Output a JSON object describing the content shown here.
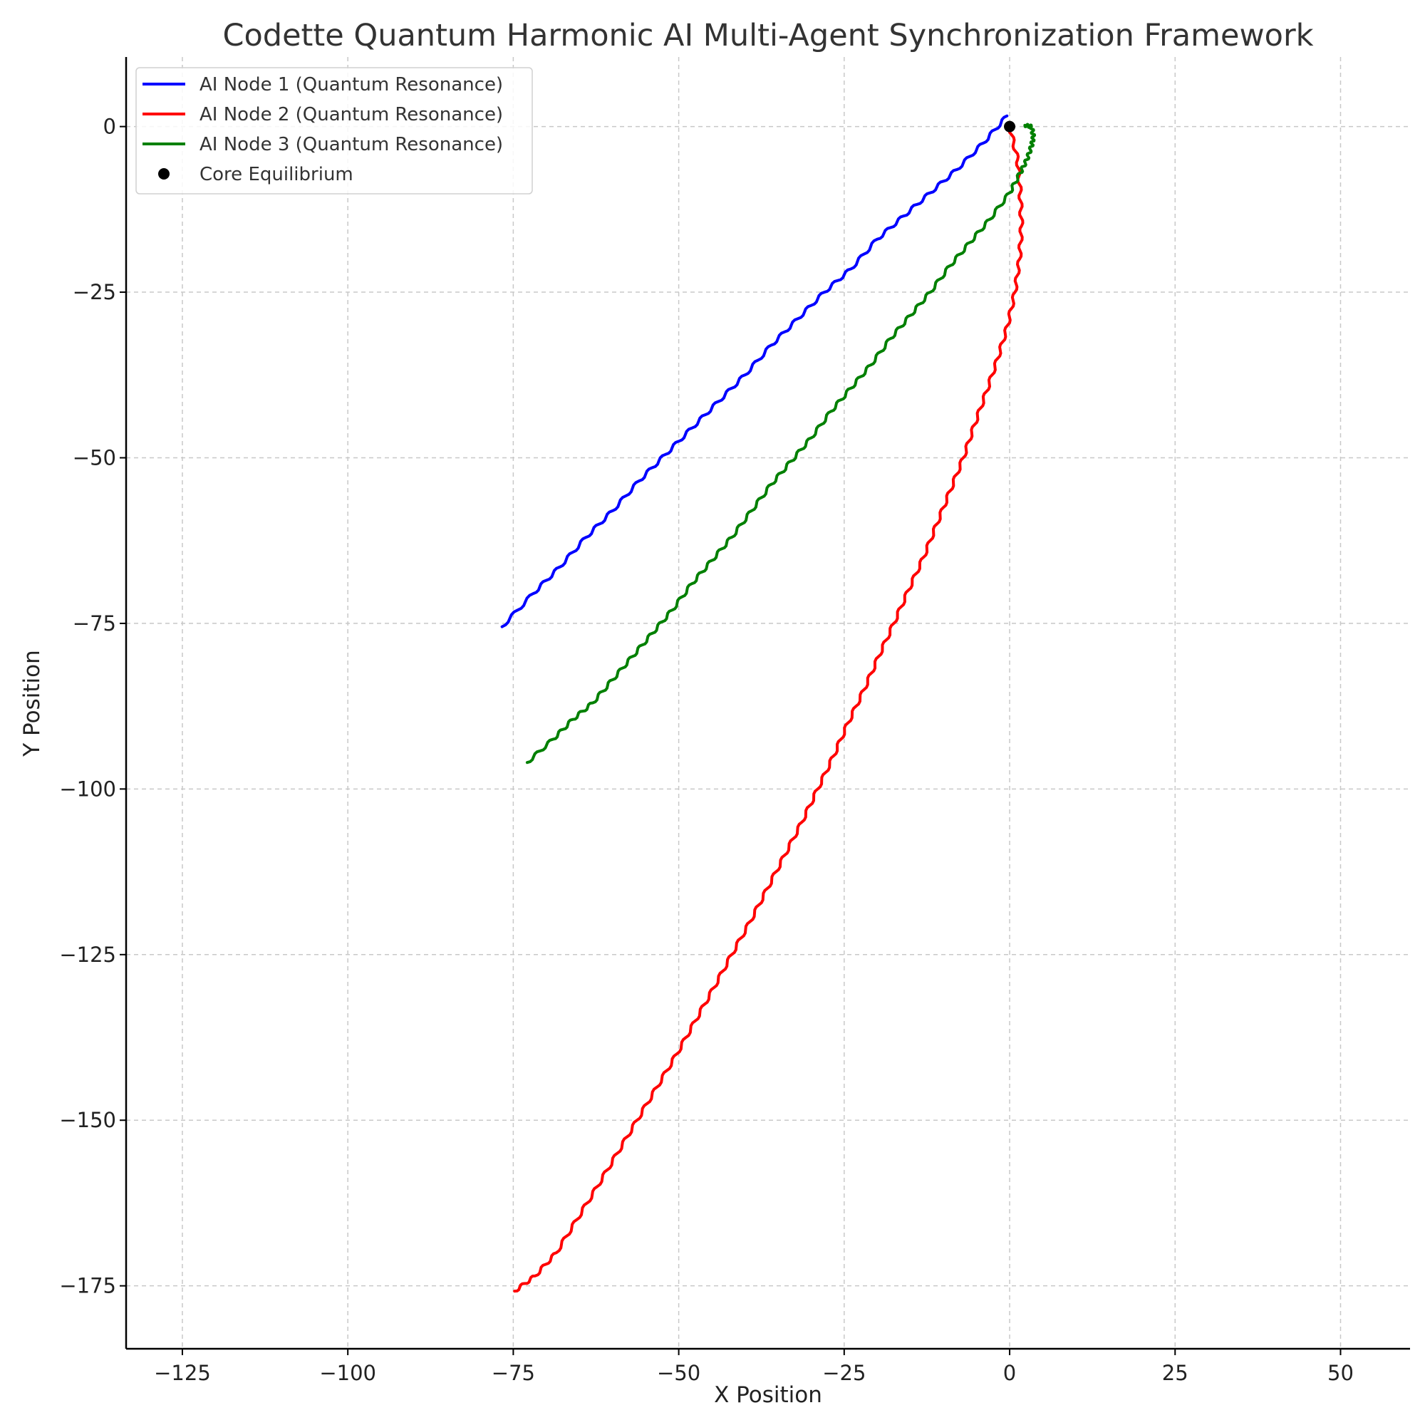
{
  "chart_data": {
    "type": "line",
    "title": "Codette Quantum Harmonic AI Multi-Agent Synchronization Framework",
    "xlabel": "X Position",
    "ylabel": "Y Position",
    "xlim": [
      -133.5,
      60.5
    ],
    "ylim": [
      -184.5,
      10.5
    ],
    "xticks": [
      -125,
      -100,
      -75,
      -50,
      -25,
      0,
      25,
      50
    ],
    "yticks": [
      0,
      -25,
      -50,
      -75,
      -100,
      -125,
      -150,
      -175
    ],
    "xtick_labels": [
      "−125",
      "−100",
      "−75",
      "−50",
      "−25",
      "0",
      "25",
      "50"
    ],
    "ytick_labels": [
      "0",
      "−25",
      "−50",
      "−75",
      "−100",
      "−125",
      "−150",
      "−175"
    ],
    "grid": true,
    "legend_position": "top-left",
    "series": [
      {
        "name": "AI Node 1 (Quantum Resonance)",
        "color": "#0000ff",
        "points": [
          [
            -0.4,
            1.6
          ],
          [
            -4,
            -2.5
          ],
          [
            -8,
            -6.5
          ],
          [
            -12,
            -10
          ],
          [
            -16,
            -13.5
          ],
          [
            -20,
            -17
          ],
          [
            -24,
            -21.5
          ],
          [
            -28,
            -25
          ],
          [
            -32,
            -29
          ],
          [
            -36,
            -33
          ],
          [
            -40,
            -37.5
          ],
          [
            -44,
            -41.5
          ],
          [
            -48,
            -45.5
          ],
          [
            -52,
            -49.5
          ],
          [
            -56,
            -53.5
          ],
          [
            -60,
            -58
          ],
          [
            -64,
            -62
          ],
          [
            -68,
            -66.5
          ],
          [
            -72,
            -70.5
          ],
          [
            -76.7,
            -75.5
          ]
        ]
      },
      {
        "name": "AI Node 2 (Quantum Resonance)",
        "color": "#ff0000",
        "points": [
          [
            0,
            0
          ],
          [
            1.2,
            -5
          ],
          [
            1.6,
            -10
          ],
          [
            1.8,
            -15
          ],
          [
            1.5,
            -20
          ],
          [
            0.8,
            -25
          ],
          [
            -0.3,
            -30
          ],
          [
            -1.8,
            -35
          ],
          [
            -3.5,
            -40
          ],
          [
            -5.3,
            -45
          ],
          [
            -7,
            -50
          ],
          [
            -9,
            -55
          ],
          [
            -11,
            -60
          ],
          [
            -13,
            -65
          ],
          [
            -15.3,
            -70
          ],
          [
            -17.5,
            -75
          ],
          [
            -19.8,
            -80
          ],
          [
            -22,
            -85
          ],
          [
            -24.4,
            -90
          ],
          [
            -26.6,
            -95
          ],
          [
            -29,
            -100
          ],
          [
            -31.4,
            -105
          ],
          [
            -34,
            -110
          ],
          [
            -36.6,
            -115
          ],
          [
            -39.2,
            -120
          ],
          [
            -42,
            -125
          ],
          [
            -44.7,
            -130
          ],
          [
            -47.5,
            -135
          ],
          [
            -50.3,
            -140
          ],
          [
            -53.3,
            -145
          ],
          [
            -56.3,
            -150
          ],
          [
            -59.3,
            -155
          ],
          [
            -62.3,
            -160
          ],
          [
            -65.4,
            -165
          ],
          [
            -68.5,
            -170
          ],
          [
            -71.7,
            -173.5
          ],
          [
            -74.8,
            -175.8
          ]
        ]
      },
      {
        "name": "AI Node 3 (Quantum Resonance)",
        "color": "#008000",
        "points": [
          [
            2.3,
            0.2
          ],
          [
            3.3,
            0
          ],
          [
            3.6,
            -1.5
          ],
          [
            3.3,
            -3
          ],
          [
            2.6,
            -5
          ],
          [
            1.6,
            -7
          ],
          [
            0,
            -10
          ],
          [
            -3,
            -14
          ],
          [
            -6,
            -17.5
          ],
          [
            -9,
            -21
          ],
          [
            -12,
            -25
          ],
          [
            -15,
            -28.5
          ],
          [
            -18,
            -32
          ],
          [
            -21,
            -36
          ],
          [
            -24,
            -39.5
          ],
          [
            -27,
            -43
          ],
          [
            -30,
            -47
          ],
          [
            -33,
            -50.5
          ],
          [
            -36,
            -54
          ],
          [
            -39,
            -58
          ],
          [
            -42,
            -62
          ],
          [
            -45,
            -65.5
          ],
          [
            -48,
            -69
          ],
          [
            -51,
            -73
          ],
          [
            -54,
            -76.5
          ],
          [
            -57,
            -80
          ],
          [
            -60,
            -83.5
          ],
          [
            -63,
            -87
          ],
          [
            -66,
            -89.5
          ],
          [
            -69,
            -92.5
          ],
          [
            -72.9,
            -96
          ]
        ]
      }
    ],
    "markers": [
      {
        "name": "Core Equilibrium",
        "x": 0,
        "y": 0,
        "color": "#000000"
      }
    ]
  }
}
